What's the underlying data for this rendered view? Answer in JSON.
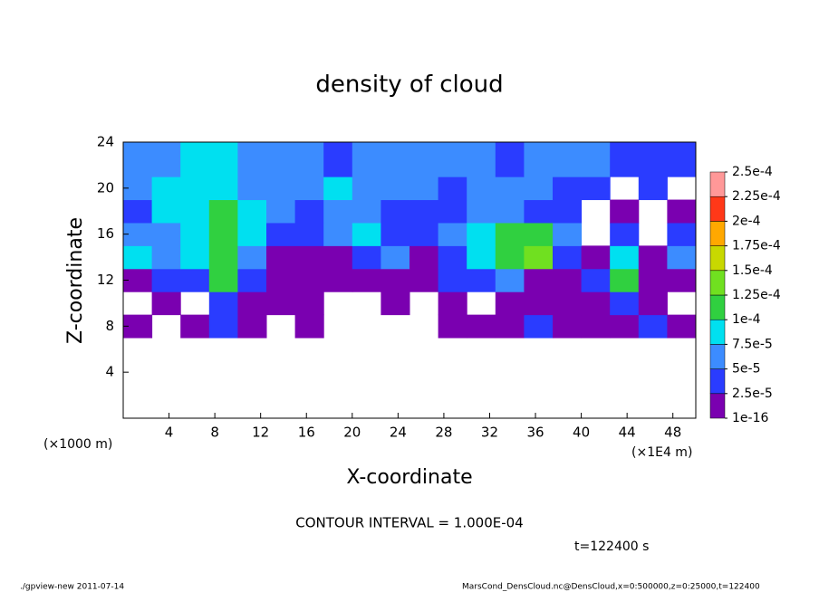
{
  "chart_data": {
    "type": "heatmap",
    "title": "density of cloud",
    "xlabel": "X-coordinate",
    "ylabel": "Z-coordinate",
    "xunit": "(×1E4 m)",
    "yunit": "(×1000 m)",
    "annotation": "CONTOUR INTERVAL = 1.000E-04",
    "time": "t=122400 s",
    "footer_left": "./gpview-new  2011-07-14",
    "footer_right": "MarsCond_DensCloud.nc@DensCloud,x=0:500000,z=0:25000,t=122400",
    "xlim": [
      0,
      50
    ],
    "ylim": [
      0,
      24
    ],
    "xticks": [
      4,
      8,
      12,
      16,
      20,
      24,
      28,
      32,
      36,
      40,
      44,
      48
    ],
    "yticks": [
      4,
      8,
      12,
      16,
      20,
      24
    ],
    "x": [
      0,
      2.5,
      5,
      7.5,
      10,
      12.5,
      15,
      17.5,
      20,
      22.5,
      25,
      27.5,
      30,
      32.5,
      35,
      37.5,
      40,
      42.5,
      45,
      47.5,
      50
    ],
    "y": [
      7,
      9,
      11,
      13,
      15,
      17,
      19,
      21,
      24
    ],
    "z": [
      [
        1e-05,
        null,
        1e-05,
        3e-05,
        1e-05,
        null,
        1e-05,
        null,
        null,
        null,
        null,
        1e-05,
        1e-05,
        1e-05,
        3e-05,
        1e-05,
        1e-05,
        1e-05,
        3e-05,
        1e-05
      ],
      [
        null,
        1e-05,
        null,
        3e-05,
        1e-05,
        1e-05,
        1e-05,
        null,
        null,
        1e-05,
        null,
        1e-05,
        null,
        1e-05,
        1e-05,
        1e-05,
        1e-05,
        3e-05,
        1e-05,
        null
      ],
      [
        1e-05,
        3e-05,
        3e-05,
        0.00011,
        3e-05,
        1e-05,
        1e-05,
        1e-05,
        1e-05,
        1e-05,
        1e-05,
        3e-05,
        3e-05,
        6e-05,
        1e-05,
        1e-05,
        3e-05,
        0.00011,
        1e-05,
        1e-05
      ],
      [
        8e-05,
        6e-05,
        8e-05,
        0.00011,
        6e-05,
        1e-05,
        1e-05,
        1e-05,
        3e-05,
        6e-05,
        1e-05,
        3e-05,
        8e-05,
        0.00011,
        0.00013,
        3e-05,
        1e-05,
        8e-05,
        1e-05,
        6e-05
      ],
      [
        6e-05,
        6e-05,
        8e-05,
        0.00011,
        8e-05,
        3e-05,
        3e-05,
        6e-05,
        8e-05,
        3e-05,
        3e-05,
        6e-05,
        8e-05,
        0.00011,
        0.00011,
        6e-05,
        null,
        3e-05,
        null,
        3e-05
      ],
      [
        3e-05,
        8e-05,
        8e-05,
        0.00011,
        8e-05,
        6e-05,
        3e-05,
        6e-05,
        6e-05,
        3e-05,
        3e-05,
        3e-05,
        6e-05,
        6e-05,
        3e-05,
        3e-05,
        null,
        1e-05,
        null,
        1e-05
      ],
      [
        6e-05,
        8e-05,
        8e-05,
        8e-05,
        6e-05,
        6e-05,
        6e-05,
        8e-05,
        6e-05,
        6e-05,
        6e-05,
        3e-05,
        6e-05,
        6e-05,
        6e-05,
        3e-05,
        3e-05,
        null,
        3e-05,
        null
      ],
      [
        6e-05,
        6e-05,
        8e-05,
        8e-05,
        6e-05,
        6e-05,
        6e-05,
        3e-05,
        6e-05,
        6e-05,
        6e-05,
        6e-05,
        6e-05,
        3e-05,
        6e-05,
        6e-05,
        6e-05,
        3e-05,
        3e-05,
        3e-05
      ]
    ],
    "levels": [
      {
        "value": 1e-16,
        "label": "1e-16"
      },
      {
        "value": 2.5e-05,
        "label": "2.5e-5"
      },
      {
        "value": 5e-05,
        "label": "5e-5"
      },
      {
        "value": 7.5e-05,
        "label": "7.5e-5"
      },
      {
        "value": 0.0001,
        "label": "1e-4"
      },
      {
        "value": 0.000125,
        "label": "1.25e-4"
      },
      {
        "value": 0.00015,
        "label": "1.5e-4"
      },
      {
        "value": 0.000175,
        "label": "1.75e-4"
      },
      {
        "value": 0.0002,
        "label": "2e-4"
      },
      {
        "value": 0.000225,
        "label": "2.25e-4"
      },
      {
        "value": 0.00025,
        "label": "2.5e-4"
      }
    ],
    "colors": [
      "#7a00b0",
      "#2a3cff",
      "#3c8cff",
      "#00e0f0",
      "#30d040",
      "#70e020",
      "#c8d800",
      "#ffa800",
      "#ff3818",
      "#ff9898"
    ]
  }
}
